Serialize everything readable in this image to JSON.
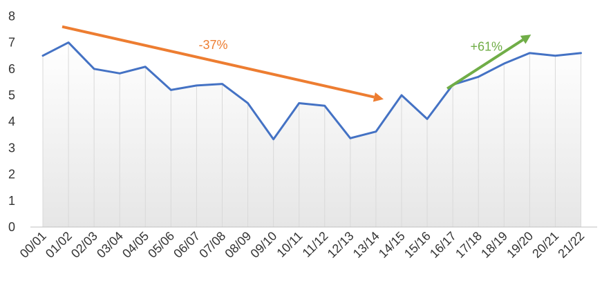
{
  "chart_data": {
    "type": "area",
    "title": "",
    "xlabel": "",
    "ylabel": "",
    "ylim": [
      0,
      8
    ],
    "yticks": [
      "0",
      "1",
      "2",
      "3",
      "4",
      "5",
      "6",
      "7",
      "8"
    ],
    "categories": [
      "00/01",
      "01/02",
      "02/03",
      "03/04",
      "04/05",
      "05/06",
      "06/07",
      "07/08",
      "08/09",
      "09/10",
      "10/11",
      "11/12",
      "12/13",
      "13/14",
      "14/15",
      "15/16",
      "16/17",
      "17/18",
      "18/19",
      "19/20",
      "20/21",
      "21/22"
    ],
    "series": [
      {
        "values": [
          6.5,
          7.0,
          6.0,
          5.83,
          6.08,
          5.2,
          5.37,
          5.43,
          4.7,
          3.33,
          4.7,
          4.6,
          3.37,
          3.62,
          5.0,
          4.1,
          5.4,
          5.7,
          6.2,
          6.6,
          6.5,
          6.6
        ],
        "color": "#4472C4"
      }
    ],
    "grid": false,
    "area_fill": "#eeeeee",
    "drop_line_color": "#d9d9d9",
    "annotations": [
      {
        "text": "-37%",
        "color": "#ED7D31",
        "from": [
          "00/01",
          7.6
        ],
        "to": [
          "14/15",
          4.85
        ]
      },
      {
        "text": "+61%",
        "color": "#70AD47",
        "from": [
          "16/17",
          5.25
        ],
        "to": [
          "19/20",
          7.3
        ]
      }
    ]
  }
}
